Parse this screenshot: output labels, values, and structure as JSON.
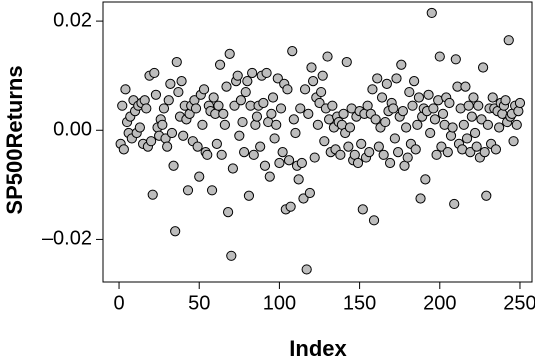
{
  "chart_data": {
    "type": "scatter",
    "x_label": "Index",
    "y_label": "SP500Returns",
    "xlim": [
      -10,
      257.5
    ],
    "ylim": [
      -0.0278,
      0.0235
    ],
    "xticks": [
      0,
      50,
      100,
      150,
      200,
      250
    ],
    "yticks": [
      {
        "value": -0.02,
        "label": "–0.02"
      },
      {
        "value": 0,
        "label": "0.00"
      },
      {
        "value": 0.02,
        "label": "0.02"
      }
    ],
    "color": "#bdbdbd",
    "grid": false,
    "x": [
      1,
      2,
      3,
      4,
      5,
      6,
      7,
      8,
      9,
      10,
      11,
      12,
      13,
      14,
      15,
      16,
      17,
      18,
      19,
      20,
      21,
      22,
      23,
      24,
      25,
      26,
      27,
      28,
      29,
      30,
      31,
      32,
      33,
      34,
      35,
      36,
      37,
      38,
      39,
      40,
      41,
      42,
      43,
      44,
      45,
      46,
      47,
      48,
      49,
      50,
      51,
      52,
      53,
      54,
      55,
      56,
      57,
      58,
      59,
      60,
      61,
      62,
      63,
      64,
      65,
      66,
      67,
      68,
      69,
      70,
      71,
      72,
      73,
      74,
      75,
      76,
      77,
      78,
      79,
      80,
      81,
      82,
      83,
      84,
      85,
      86,
      87,
      88,
      89,
      90,
      91,
      92,
      93,
      94,
      95,
      96,
      97,
      98,
      99,
      100,
      101,
      102,
      103,
      104,
      105,
      106,
      107,
      108,
      109,
      110,
      111,
      112,
      113,
      114,
      115,
      116,
      117,
      118,
      119,
      120,
      121,
      122,
      123,
      124,
      125,
      126,
      127,
      128,
      129,
      130,
      131,
      132,
      133,
      134,
      135,
      136,
      137,
      138,
      139,
      140,
      141,
      142,
      143,
      144,
      145,
      146,
      147,
      148,
      149,
      150,
      151,
      152,
      153,
      154,
      155,
      156,
      157,
      158,
      159,
      160,
      161,
      162,
      163,
      164,
      165,
      166,
      167,
      168,
      169,
      170,
      171,
      172,
      173,
      174,
      175,
      176,
      177,
      178,
      179,
      180,
      181,
      182,
      183,
      184,
      185,
      186,
      187,
      188,
      189,
      190,
      191,
      192,
      193,
      194,
      195,
      196,
      197,
      198,
      199,
      200,
      201,
      202,
      203,
      204,
      205,
      206,
      207,
      208,
      209,
      210,
      211,
      212,
      213,
      214,
      215,
      216,
      217,
      218,
      219,
      220,
      221,
      222,
      223,
      224,
      225,
      226,
      227,
      228,
      229,
      230,
      231,
      232,
      233,
      234,
      235,
      236,
      237,
      238,
      239,
      240,
      241,
      242,
      243,
      244,
      245,
      246,
      247,
      248,
      249,
      250
    ],
    "values": [
      -0.0025,
      0.0045,
      -0.0035,
      0.0075,
      0.0015,
      -0.0005,
      0.0025,
      -0.0015,
      0.0055,
      0.0035,
      -0.0005,
      0.0045,
      0.0005,
      0.005,
      -0.0025,
      0.0055,
      0.004,
      -0.003,
      0.01,
      -0.002,
      -0.0118,
      0.0105,
      0.0065,
      0.0005,
      -0.001,
      0.002,
      0.001,
      0.004,
      -0.0015,
      -0.003,
      0.0055,
      0.0085,
      -0.0005,
      -0.0065,
      -0.0185,
      0.0125,
      0.007,
      0.0025,
      0.009,
      -0.001,
      0.0045,
      0.002,
      -0.011,
      0.003,
      0.0045,
      -0.002,
      0.0055,
      0.004,
      -0.003,
      -0.0085,
      0.0065,
      0.001,
      0.0075,
      -0.004,
      -0.0045,
      0.0045,
      0.0035,
      -0.011,
      0.006,
      0.003,
      -0.0025,
      0.0045,
      0.012,
      -0.0045,
      0.003,
      0.001,
      0.008,
      -0.015,
      0.014,
      -0.023,
      -0.007,
      0.0045,
      0.009,
      0.01,
      -0.001,
      0.0055,
      0.0015,
      -0.004,
      0.007,
      0.009,
      -0.012,
      0.0045,
      0.0105,
      -0.0045,
      0.001,
      0.0025,
      0.0045,
      -0.003,
      0.01,
      0.005,
      -0.0065,
      0.0105,
      0.0015,
      -0.0085,
      0.003,
      0.006,
      -0.0015,
      0.001,
      0.0095,
      -0.006,
      0.004,
      -0.004,
      0.0085,
      -0.0145,
      0.0075,
      -0.0055,
      -0.014,
      0.0145,
      0.002,
      -0.0005,
      -0.0065,
      -0.009,
      0.004,
      -0.006,
      -0.0125,
      0.0075,
      -0.0255,
      0.003,
      -0.0115,
      0.0115,
      0.009,
      -0.005,
      0.006,
      0.001,
      0.005,
      0.007,
      0.01,
      -0.002,
      0.004,
      0.0135,
      0.002,
      -0.004,
      0.0045,
      0.0005,
      -0.0035,
      0.0025,
      0.0015,
      -0.0045,
      0.001,
      0.003,
      -0.0005,
      0.0125,
      -0.003,
      0.0005,
      0.004,
      -0.0055,
      -0.0045,
      0.0025,
      -0.006,
      0.0035,
      -0.0025,
      -0.0145,
      0.003,
      -0.005,
      0.0045,
      -0.004,
      0.003,
      0.0075,
      -0.0165,
      0.002,
      0.0095,
      -0.003,
      0.0005,
      0.006,
      -0.0045,
      0.0015,
      0.0085,
      0.0035,
      -0.006,
      0.005,
      0.004,
      -0.0015,
      0.0095,
      -0.004,
      0.0025,
      0.012,
      0.0035,
      -0.0065,
      0.0005,
      -0.005,
      0.007,
      -0.0025,
      0.0045,
      0.009,
      -0.0035,
      0.001,
      0.006,
      -0.0125,
      0.0025,
      0.004,
      -0.009,
      0.0035,
      0.0065,
      -0.0005,
      0.0215,
      0.004,
      0.002,
      -0.0045,
      0.0055,
      0.0135,
      -0.003,
      0.003,
      0.001,
      0.006,
      -0.004,
      0.005,
      -0.001,
      0.0005,
      -0.0135,
      0.013,
      0.008,
      -0.0025,
      0.004,
      -0.0035,
      0.001,
      0.008,
      -0.0015,
      0.0045,
      -0.004,
      0.0025,
      0.006,
      -0.0005,
      -0.003,
      0.0045,
      -0.005,
      0.002,
      0.0115,
      -0.004,
      -0.012,
      0.001,
      0.004,
      -0.0025,
      0.006,
      0.004,
      -0.0035,
      0.0035,
      0.0005,
      0.005,
      0.003,
      0.0045,
      0.0055,
      0.0015,
      0.0165,
      0.0025,
      0.003,
      -0.002,
      0.0045,
      0.001,
      0.0035,
      0.005
    ]
  }
}
